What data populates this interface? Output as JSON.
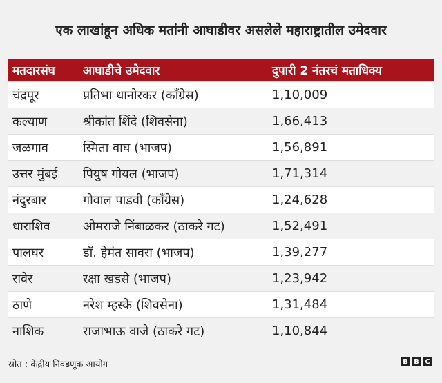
{
  "header": {
    "title": "एक लाखांहून अधिक मतांनी आघाडीवर असलेले महाराष्ट्रातील उमेदवार"
  },
  "table": {
    "columns": [
      "मतदारसंघ",
      "आघाडीचे उमेदवार",
      "दुपारी 2 नंतरचं मताधिक्य"
    ],
    "rows": [
      [
        "चंद्रपूर",
        "प्रतिभा धानोरकर (काँग्रेस)",
        "1,10,009"
      ],
      [
        "कल्याण",
        "श्रीकांत शिंदे (शिवसेना)",
        "1,66,413"
      ],
      [
        "जळगाव",
        "स्मिता वाघ (भाजप)",
        "1,56,891"
      ],
      [
        "उत्तर मुंबई",
        "पियुष गोयल (भाजप)",
        "1,71,314"
      ],
      [
        "नंदुरबार",
        "गोवाल पाडवी (काँग्रेस)",
        "1,24,628"
      ],
      [
        "धाराशिव",
        "ओमराजे निंबाळकर (ठाकरे गट)",
        "1,52,491"
      ],
      [
        "पालघर",
        "डॉ. हेमंत सावरा (भाजप)",
        "1,39,277"
      ],
      [
        "रावेर",
        "रक्षा खडसे (भाजप)",
        "1,23,942"
      ],
      [
        "ठाणे",
        "नरेश म्हस्के (शिवसेना)",
        "1,31,484"
      ],
      [
        "नाशिक",
        "राजाभाऊ वाजे (ठाकरे गट)",
        "1,10,844"
      ]
    ]
  },
  "footer": {
    "source": "स्रोत : केंद्रीय निवडणूक आयोग",
    "logo": [
      "B",
      "B",
      "C"
    ]
  }
}
